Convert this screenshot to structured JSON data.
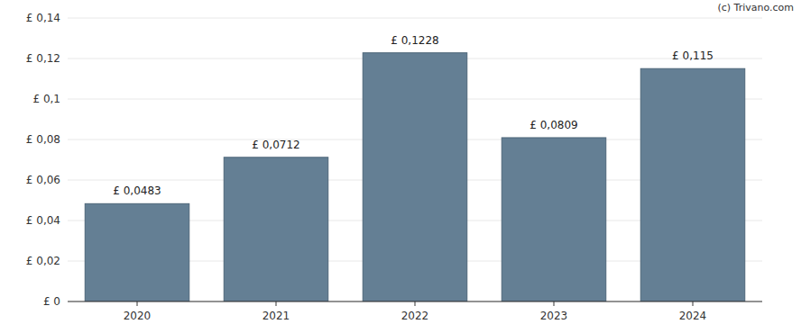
{
  "chart_data": {
    "type": "bar",
    "categories": [
      "2020",
      "2021",
      "2022",
      "2023",
      "2024"
    ],
    "values": [
      0.0483,
      0.0712,
      0.1228,
      0.0809,
      0.115
    ],
    "value_labels": [
      "£ 0,0483",
      "£ 0,0712",
      "£ 0,1228",
      "£ 0,0809",
      "£ 0,115"
    ],
    "data_labels": true,
    "color": "#647f94",
    "ylim": [
      0,
      0.14
    ],
    "yticks": [
      {
        "value": 0,
        "label": "£ 0"
      },
      {
        "value": 0.02,
        "label": "£ 0,02"
      },
      {
        "value": 0.04,
        "label": "£ 0,04"
      },
      {
        "value": 0.06,
        "label": "£ 0,06"
      },
      {
        "value": 0.08,
        "label": "£ 0,08"
      },
      {
        "value": 0.1,
        "label": "£ 0,1"
      },
      {
        "value": 0.12,
        "label": "£ 0,12"
      },
      {
        "value": 0.14,
        "label": "£ 0,14"
      }
    ],
    "grid": true,
    "annotations": [
      "(c) Trivano.com"
    ]
  }
}
